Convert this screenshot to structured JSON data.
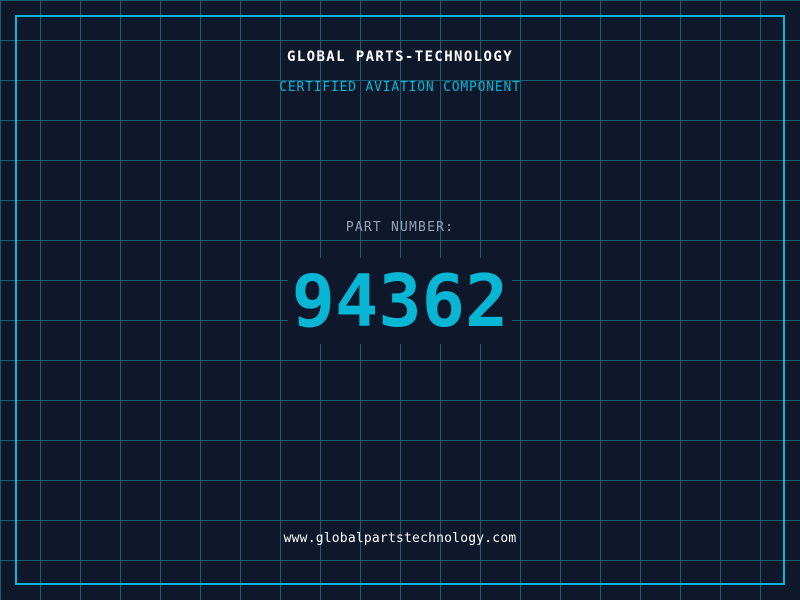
{
  "header": {
    "title": "GLOBAL PARTS-TECHNOLOGY",
    "subtitle": "CERTIFIED AVIATION COMPONENT"
  },
  "part": {
    "label": "PART NUMBER:",
    "number": "94362"
  },
  "footer": {
    "url": "www.globalpartstechnology.com"
  },
  "colors": {
    "background": "#0f172a",
    "accent": "#06b6d4",
    "grid": "#155e75"
  }
}
